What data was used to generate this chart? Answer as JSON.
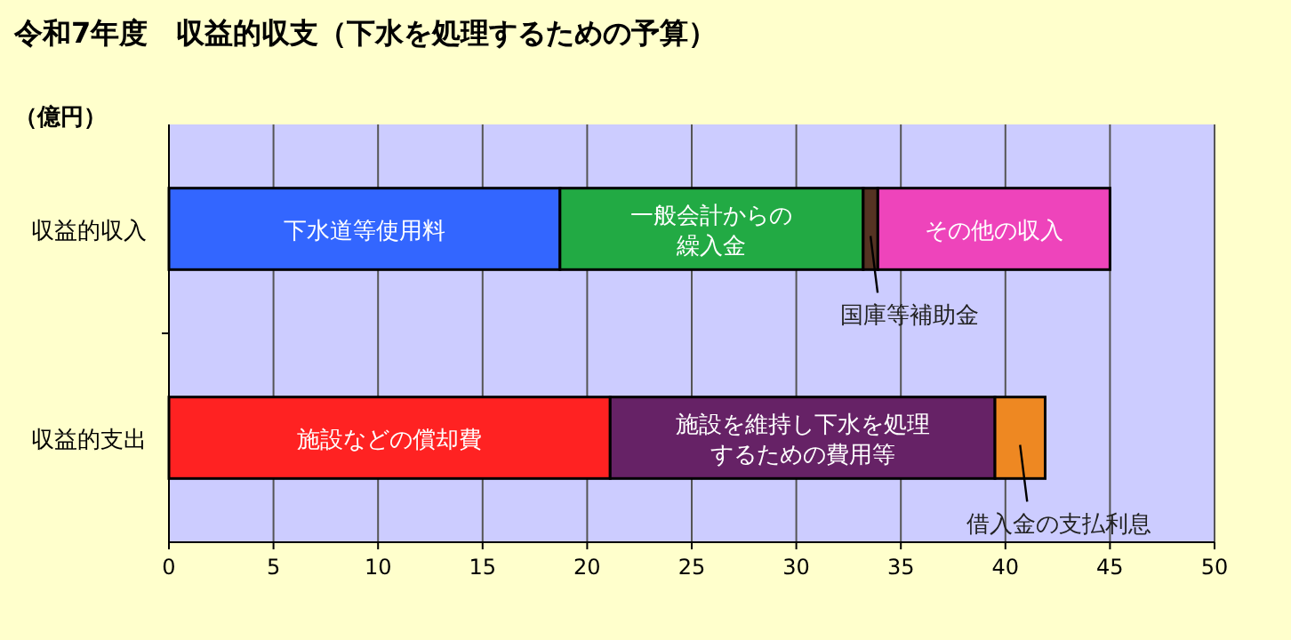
{
  "chart_data": {
    "type": "bar",
    "orientation": "horizontal",
    "stacked": true,
    "title": "令和7年度　収益的収支（下水を処理するための予算）",
    "ylabel": "（億円）",
    "categories": [
      "収益的収入",
      "収益的支出"
    ],
    "series": [
      {
        "name": "下水道等使用料",
        "color": "#3366ff",
        "values": [
          18.7,
          null
        ]
      },
      {
        "name": "一般会計からの繰入金",
        "color": "#22aa44",
        "values": [
          14.5,
          null
        ]
      },
      {
        "name": "国庫等補助金",
        "color": "#553322",
        "values": [
          0.7,
          null
        ]
      },
      {
        "name": "その他の収入",
        "color": "#ee44bb",
        "values": [
          11.1,
          null
        ]
      },
      {
        "name": "施設などの償却費",
        "color": "#ff2222",
        "values": [
          null,
          21.1
        ]
      },
      {
        "name": "施設を維持し下水を処理するための費用等",
        "color": "#662266",
        "values": [
          null,
          18.4
        ]
      },
      {
        "name": "借入金の支払利息",
        "color": "#ee8822",
        "values": [
          null,
          2.4
        ]
      }
    ],
    "xlim": [
      0,
      50
    ],
    "xticks": [
      0,
      5,
      10,
      15,
      20,
      25,
      30,
      35,
      40,
      45,
      50
    ],
    "grid": "x"
  }
}
